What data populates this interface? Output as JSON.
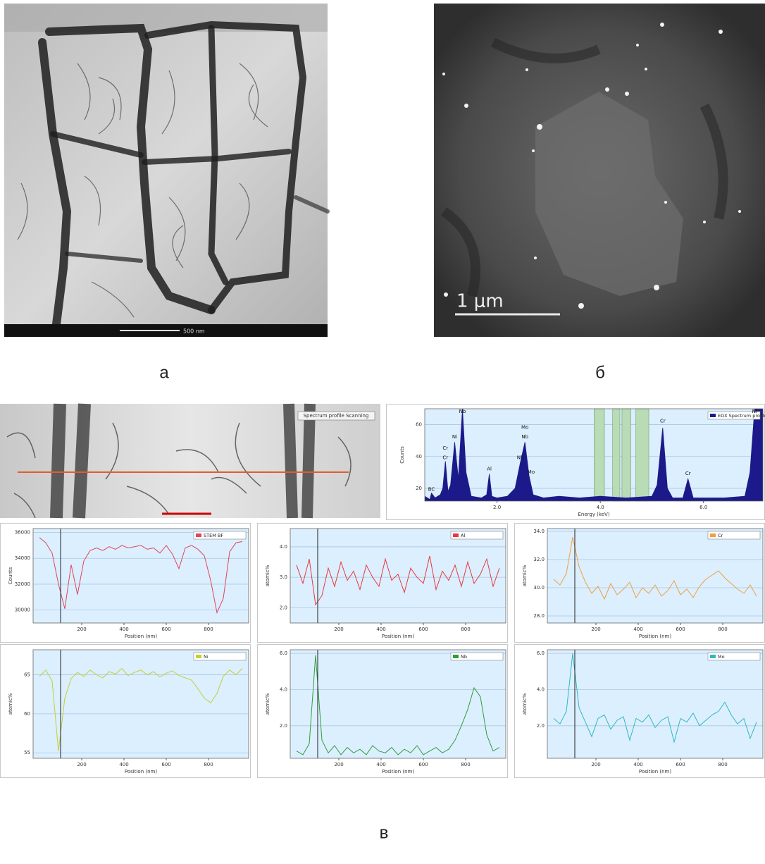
{
  "figure_labels": [
    "а",
    "б",
    "в"
  ],
  "micrographs": {
    "a_scale": "500 nm",
    "b_scale": "1 μm",
    "c_caption": "Spectrum profile Scanning"
  },
  "chart_data": [
    {
      "type": "area",
      "x_label": "Energy (keV)",
      "y_label": "Counts",
      "x": [
        0.6,
        0.7,
        0.73,
        0.8,
        0.9,
        0.95,
        1.0,
        1.05,
        1.1,
        1.18,
        1.25,
        1.33,
        1.4,
        1.5,
        1.7,
        1.8,
        1.85,
        1.9,
        2.0,
        2.2,
        2.35,
        2.45,
        2.54,
        2.62,
        2.7,
        2.9,
        3.2,
        3.6,
        4.0,
        4.5,
        5.0,
        5.1,
        5.21,
        5.3,
        5.4,
        5.6,
        5.7,
        5.8,
        6.0,
        6.4,
        6.8,
        6.9,
        6.99,
        7.1,
        7.15
      ],
      "series": [
        {
          "name": "EDX Spectrum profile",
          "color": "#1c1a8a",
          "values": [
            15,
            13,
            17,
            14,
            16,
            20,
            37,
            18,
            22,
            49,
            26,
            70,
            30,
            15,
            14,
            16,
            29,
            15,
            14,
            15,
            20,
            36,
            49,
            28,
            16,
            14,
            15,
            14,
            15,
            14,
            15,
            22,
            58,
            20,
            14,
            14,
            26,
            14,
            14,
            14,
            15,
            30,
            70,
            70,
            70
          ]
        }
      ],
      "xlim": [
        0.6,
        7.15
      ],
      "ylim": [
        12,
        70
      ],
      "xticks": [
        {
          "value": 2,
          "label": "2.0"
        },
        {
          "value": 4,
          "label": "4.0"
        },
        {
          "value": 6,
          "label": "6.0"
        }
      ],
      "yticks": [
        20,
        40,
        60
      ],
      "grid": true,
      "background": "#dcefff",
      "bands": [
        [
          3.88,
          4.08
        ],
        [
          4.24,
          4.38
        ],
        [
          4.42,
          4.59
        ],
        [
          4.69,
          4.94
        ]
      ],
      "band_color": "#b9dcb6",
      "peak_labels": [
        {
          "text": "BC",
          "x": 0.73,
          "y": 17
        },
        {
          "text": "Cr",
          "x": 1.0,
          "y": 37
        },
        {
          "text": "Cr",
          "x": 1.0,
          "y": 43
        },
        {
          "text": "Ni",
          "x": 1.18,
          "y": 50
        },
        {
          "text": "Nb",
          "x": 1.33,
          "y": 67
        },
        {
          "text": "Al",
          "x": 1.85,
          "y": 30
        },
        {
          "text": "Nb",
          "x": 2.45,
          "y": 37
        },
        {
          "text": "Nb",
          "x": 2.54,
          "y": 50
        },
        {
          "text": "Mo",
          "x": 2.54,
          "y": 56
        },
        {
          "text": "Mo",
          "x": 2.66,
          "y": 28
        },
        {
          "text": "Cr",
          "x": 5.21,
          "y": 60
        },
        {
          "text": "Cr",
          "x": 5.7,
          "y": 27
        },
        {
          "text": "Ni",
          "x": 6.99,
          "y": 67
        }
      ]
    },
    {
      "type": "line",
      "x_label": "Position (nm)",
      "y_label": "Counts",
      "x": [
        0,
        30,
        60,
        90,
        120,
        150,
        180,
        210,
        240,
        270,
        300,
        330,
        360,
        390,
        420,
        450,
        480,
        510,
        540,
        570,
        600,
        630,
        660,
        690,
        720,
        750,
        780,
        810,
        840,
        870,
        900,
        930,
        960
      ],
      "series": [
        {
          "name": "STEM BF",
          "color": "#e0455a",
          "values": [
            35600,
            35200,
            34400,
            32000,
            30100,
            33500,
            31200,
            33800,
            34600,
            34800,
            34600,
            34900,
            34700,
            35000,
            34800,
            34900,
            35000,
            34700,
            34800,
            34400,
            35000,
            34300,
            33200,
            34800,
            35000,
            34700,
            34200,
            32300,
            29800,
            30900,
            34500,
            35200,
            35300
          ]
        }
      ],
      "xlim": [
        -30,
        990
      ],
      "ylim": [
        29000,
        36300
      ],
      "xticks": [
        200,
        400,
        600,
        800
      ],
      "yticks": [
        30000,
        32000,
        34000,
        36000
      ],
      "grid": true,
      "background": "#dcefff",
      "cursor_x": 100
    },
    {
      "type": "line",
      "x_label": "Position (nm)",
      "y_label": "atomic%",
      "x": [
        0,
        30,
        60,
        90,
        120,
        150,
        180,
        210,
        240,
        270,
        300,
        330,
        360,
        390,
        420,
        450,
        480,
        510,
        540,
        570,
        600,
        630,
        660,
        690,
        720,
        750,
        780,
        810,
        840,
        870,
        900,
        930,
        960
      ],
      "series": [
        {
          "name": "Al",
          "color": "#e8383c",
          "values": [
            3.4,
            2.8,
            3.6,
            2.1,
            2.4,
            3.3,
            2.7,
            3.5,
            2.9,
            3.2,
            2.6,
            3.4,
            3.0,
            2.7,
            3.6,
            2.9,
            3.1,
            2.5,
            3.3,
            3.0,
            2.8,
            3.7,
            2.6,
            3.2,
            2.9,
            3.4,
            2.7,
            3.5,
            2.8,
            3.1,
            3.6,
            2.7,
            3.3
          ]
        }
      ],
      "xlim": [
        -30,
        990
      ],
      "ylim": [
        1.5,
        4.6
      ],
      "xticks": [
        200,
        400,
        600,
        800
      ],
      "yticks": [
        {
          "value": 2,
          "label": "2.0"
        },
        {
          "value": 3,
          "label": "3.0"
        },
        {
          "value": 4,
          "label": "4.0"
        }
      ],
      "grid": true,
      "background": "#dcefff",
      "cursor_x": 100
    },
    {
      "type": "line",
      "x_label": "Position (nm)",
      "y_label": "atomic%",
      "x": [
        0,
        30,
        60,
        90,
        120,
        150,
        180,
        210,
        240,
        270,
        300,
        330,
        360,
        390,
        420,
        450,
        480,
        510,
        540,
        570,
        600,
        630,
        660,
        690,
        720,
        750,
        780,
        810,
        840,
        870,
        900,
        930,
        960
      ],
      "series": [
        {
          "name": "Cr",
          "color": "#f0a040",
          "values": [
            30.6,
            30.2,
            31.0,
            33.6,
            31.5,
            30.4,
            29.6,
            30.1,
            29.2,
            30.3,
            29.5,
            29.9,
            30.4,
            29.3,
            30.0,
            29.6,
            30.2,
            29.4,
            29.8,
            30.5,
            29.5,
            29.9,
            29.3,
            30.1,
            30.6,
            30.9,
            31.2,
            30.7,
            30.3,
            29.9,
            29.6,
            30.2,
            29.4
          ]
        }
      ],
      "xlim": [
        -30,
        990
      ],
      "ylim": [
        27.5,
        34.2
      ],
      "xticks": [
        200,
        400,
        600,
        800
      ],
      "yticks": [
        {
          "value": 28,
          "label": "28.0"
        },
        {
          "value": 30,
          "label": "30.0"
        },
        {
          "value": 32,
          "label": "32.0"
        },
        {
          "value": 34,
          "label": "34.0"
        }
      ],
      "grid": true,
      "background": "#dcefff",
      "cursor_x": 100
    },
    {
      "type": "line",
      "x_label": "Position (nm)",
      "y_label": "atomic%",
      "x": [
        0,
        30,
        60,
        90,
        120,
        150,
        180,
        210,
        240,
        270,
        300,
        330,
        360,
        390,
        420,
        450,
        480,
        510,
        540,
        570,
        600,
        630,
        660,
        690,
        720,
        750,
        780,
        810,
        840,
        870,
        900,
        930,
        960
      ],
      "series": [
        {
          "name": "Ni",
          "color": "#c3cf34",
          "values": [
            64.8,
            65.6,
            64.2,
            55.2,
            62.0,
            64.5,
            65.3,
            64.8,
            65.6,
            65.0,
            64.6,
            65.4,
            65.1,
            65.8,
            64.9,
            65.3,
            65.6,
            65.0,
            65.4,
            64.7,
            65.2,
            65.5,
            64.9,
            64.6,
            64.3,
            63.2,
            62.0,
            61.4,
            62.6,
            64.8,
            65.6,
            65.0,
            65.8
          ]
        }
      ],
      "xlim": [
        -30,
        990
      ],
      "ylim": [
        54.3,
        68.2
      ],
      "xticks": [
        200,
        400,
        600,
        800
      ],
      "yticks": [
        55,
        60,
        65
      ],
      "grid": true,
      "background": "#dcefff",
      "cursor_x": 100
    },
    {
      "type": "line",
      "x_label": "Position (nm)",
      "y_label": "atomic%",
      "x": [
        0,
        30,
        60,
        90,
        120,
        150,
        180,
        210,
        240,
        270,
        300,
        330,
        360,
        390,
        420,
        450,
        480,
        510,
        540,
        570,
        600,
        630,
        660,
        690,
        720,
        750,
        780,
        810,
        840,
        870,
        900,
        930,
        960
      ],
      "series": [
        {
          "name": "Nb",
          "color": "#2e9e3a",
          "values": [
            0.6,
            0.4,
            1.0,
            5.9,
            1.2,
            0.5,
            0.9,
            0.4,
            0.8,
            0.5,
            0.7,
            0.4,
            0.9,
            0.6,
            0.5,
            0.8,
            0.4,
            0.7,
            0.5,
            0.9,
            0.4,
            0.6,
            0.8,
            0.5,
            0.7,
            1.2,
            2.0,
            2.9,
            4.1,
            3.6,
            1.5,
            0.6,
            0.8
          ]
        }
      ],
      "xlim": [
        -30,
        990
      ],
      "ylim": [
        0.2,
        6.2
      ],
      "xticks": [
        200,
        400,
        600,
        800
      ],
      "yticks": [
        {
          "value": 2,
          "label": "2.0"
        },
        {
          "value": 4,
          "label": "4.0"
        },
        {
          "value": 6,
          "label": "6.0"
        }
      ],
      "grid": true,
      "background": "#dcefff",
      "cursor_x": 100
    },
    {
      "type": "line",
      "x_label": "Position (nm)",
      "y_label": "atomic%",
      "x": [
        0,
        30,
        60,
        90,
        120,
        150,
        180,
        210,
        240,
        270,
        300,
        330,
        360,
        390,
        420,
        450,
        480,
        510,
        540,
        570,
        600,
        630,
        660,
        690,
        720,
        750,
        780,
        810,
        840,
        870,
        900,
        930,
        960
      ],
      "series": [
        {
          "name": "Mo",
          "color": "#2fb8c0",
          "values": [
            2.4,
            2.1,
            2.8,
            6.0,
            3.0,
            2.2,
            1.4,
            2.4,
            2.6,
            1.8,
            2.3,
            2.5,
            1.2,
            2.4,
            2.2,
            2.6,
            1.9,
            2.3,
            2.5,
            1.1,
            2.4,
            2.2,
            2.7,
            2.0,
            2.3,
            2.6,
            2.8,
            3.3,
            2.6,
            2.1,
            2.4,
            1.3,
            2.2
          ]
        }
      ],
      "xlim": [
        -30,
        990
      ],
      "ylim": [
        0.2,
        6.2
      ],
      "xticks": [
        200,
        400,
        600,
        800
      ],
      "yticks": [
        {
          "value": 2,
          "label": "2.0"
        },
        {
          "value": 4,
          "label": "4.0"
        },
        {
          "value": 6,
          "label": "6.0"
        }
      ],
      "grid": true,
      "background": "#dcefff",
      "cursor_x": 100
    }
  ]
}
